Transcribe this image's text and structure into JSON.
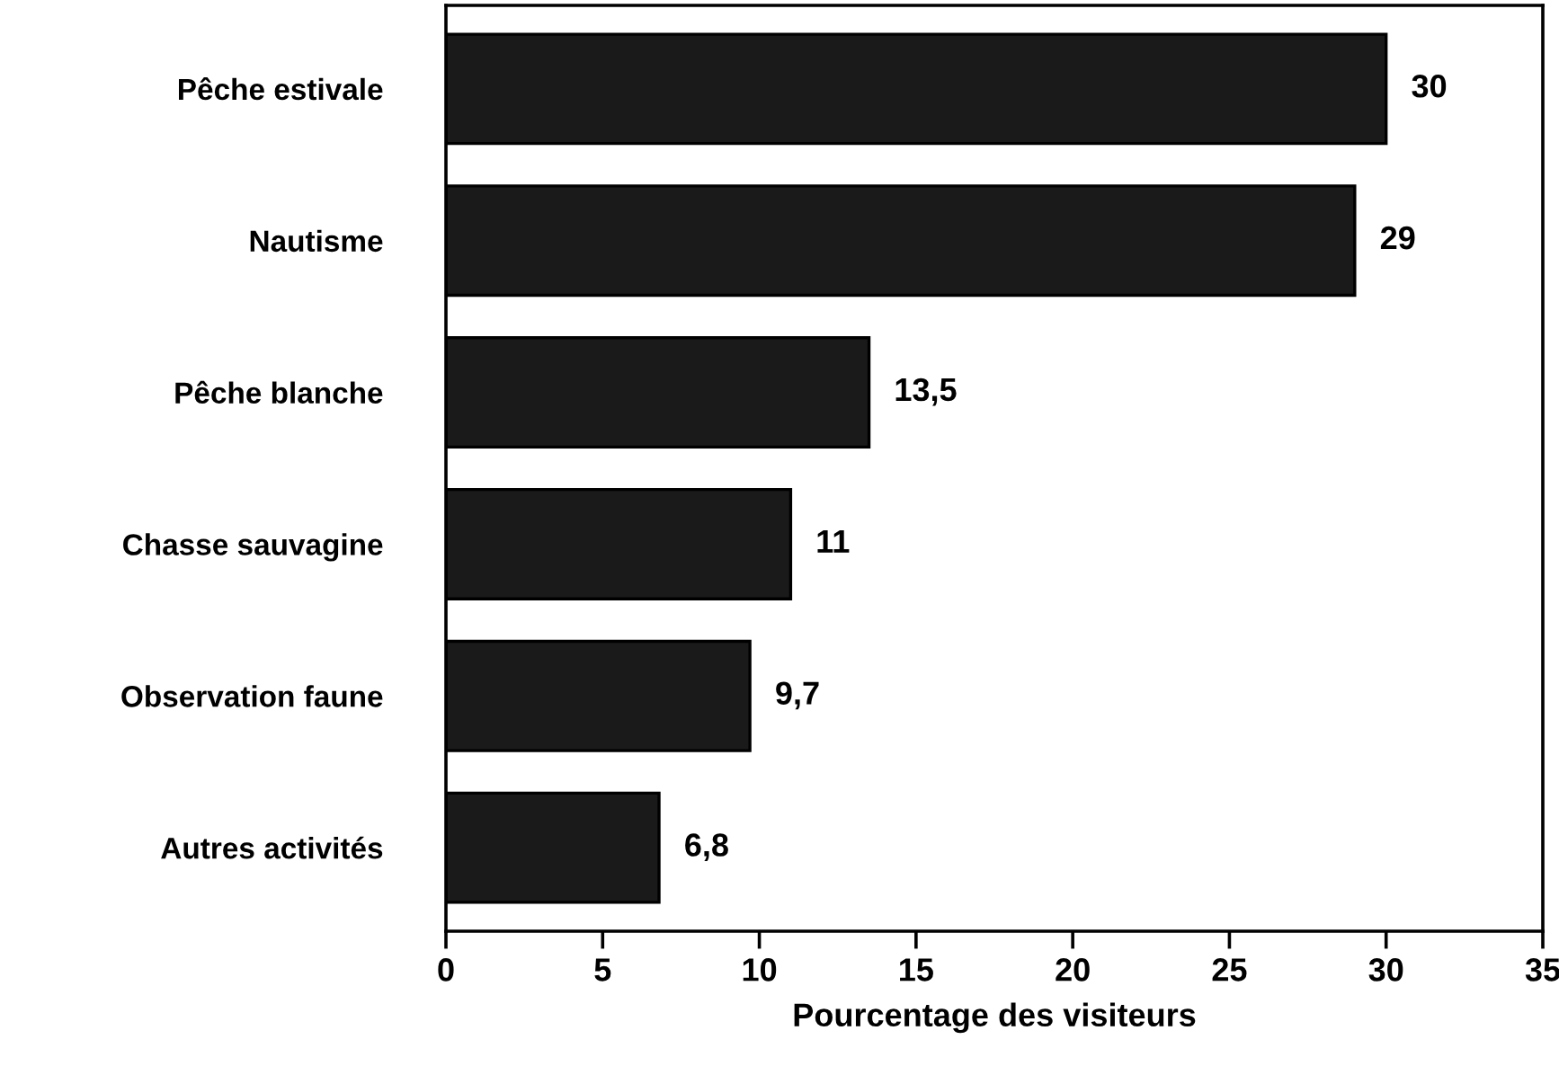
{
  "chart_data": {
    "type": "bar",
    "orientation": "horizontal",
    "xlabel": "Pourcentage des visiteurs",
    "categories": [
      "Pêche estivale",
      "Nautisme",
      "Pêche blanche",
      "Chasse sauvagine",
      "Observation faune",
      "Autres activités"
    ],
    "values": [
      30,
      29,
      13.5,
      11,
      9.7,
      6.8
    ],
    "value_labels": [
      "30",
      "29",
      "13,5",
      "11",
      "9,7",
      "6,8"
    ],
    "color": "#1a1a1a",
    "xlim": [
      0,
      35
    ],
    "xticks": [
      0,
      5,
      10,
      15,
      20,
      25,
      30,
      35
    ],
    "grid": false
  }
}
